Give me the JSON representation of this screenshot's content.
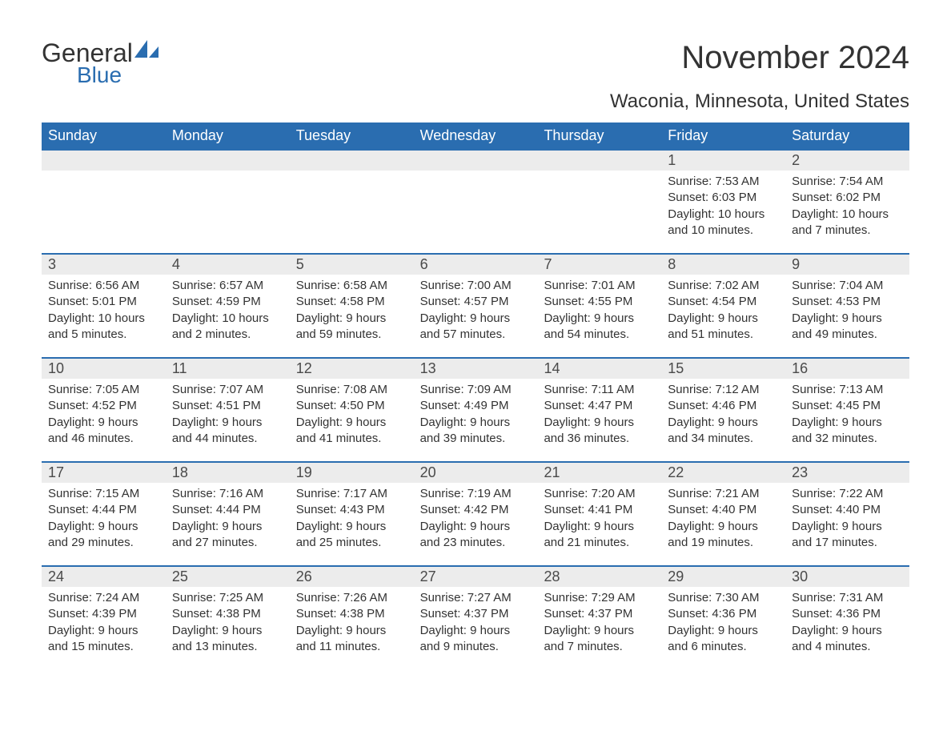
{
  "logo": {
    "text1": "General",
    "text2": "Blue"
  },
  "title": "November 2024",
  "location": "Waconia, Minnesota, United States",
  "colors": {
    "header_bg": "#2a6db0",
    "header_text": "#ffffff",
    "daynum_bg": "#ececec",
    "border": "#2a6db0",
    "body_text": "#333333",
    "logo_blue": "#2a6db0"
  },
  "dow": [
    "Sunday",
    "Monday",
    "Tuesday",
    "Wednesday",
    "Thursday",
    "Friday",
    "Saturday"
  ],
  "weeks": [
    [
      null,
      null,
      null,
      null,
      null,
      {
        "n": "1",
        "sunrise": "7:53 AM",
        "sunset": "6:03 PM",
        "daylight": "10 hours and 10 minutes."
      },
      {
        "n": "2",
        "sunrise": "7:54 AM",
        "sunset": "6:02 PM",
        "daylight": "10 hours and 7 minutes."
      }
    ],
    [
      {
        "n": "3",
        "sunrise": "6:56 AM",
        "sunset": "5:01 PM",
        "daylight": "10 hours and 5 minutes."
      },
      {
        "n": "4",
        "sunrise": "6:57 AM",
        "sunset": "4:59 PM",
        "daylight": "10 hours and 2 minutes."
      },
      {
        "n": "5",
        "sunrise": "6:58 AM",
        "sunset": "4:58 PM",
        "daylight": "9 hours and 59 minutes."
      },
      {
        "n": "6",
        "sunrise": "7:00 AM",
        "sunset": "4:57 PM",
        "daylight": "9 hours and 57 minutes."
      },
      {
        "n": "7",
        "sunrise": "7:01 AM",
        "sunset": "4:55 PM",
        "daylight": "9 hours and 54 minutes."
      },
      {
        "n": "8",
        "sunrise": "7:02 AM",
        "sunset": "4:54 PM",
        "daylight": "9 hours and 51 minutes."
      },
      {
        "n": "9",
        "sunrise": "7:04 AM",
        "sunset": "4:53 PM",
        "daylight": "9 hours and 49 minutes."
      }
    ],
    [
      {
        "n": "10",
        "sunrise": "7:05 AM",
        "sunset": "4:52 PM",
        "daylight": "9 hours and 46 minutes."
      },
      {
        "n": "11",
        "sunrise": "7:07 AM",
        "sunset": "4:51 PM",
        "daylight": "9 hours and 44 minutes."
      },
      {
        "n": "12",
        "sunrise": "7:08 AM",
        "sunset": "4:50 PM",
        "daylight": "9 hours and 41 minutes."
      },
      {
        "n": "13",
        "sunrise": "7:09 AM",
        "sunset": "4:49 PM",
        "daylight": "9 hours and 39 minutes."
      },
      {
        "n": "14",
        "sunrise": "7:11 AM",
        "sunset": "4:47 PM",
        "daylight": "9 hours and 36 minutes."
      },
      {
        "n": "15",
        "sunrise": "7:12 AM",
        "sunset": "4:46 PM",
        "daylight": "9 hours and 34 minutes."
      },
      {
        "n": "16",
        "sunrise": "7:13 AM",
        "sunset": "4:45 PM",
        "daylight": "9 hours and 32 minutes."
      }
    ],
    [
      {
        "n": "17",
        "sunrise": "7:15 AM",
        "sunset": "4:44 PM",
        "daylight": "9 hours and 29 minutes."
      },
      {
        "n": "18",
        "sunrise": "7:16 AM",
        "sunset": "4:44 PM",
        "daylight": "9 hours and 27 minutes."
      },
      {
        "n": "19",
        "sunrise": "7:17 AM",
        "sunset": "4:43 PM",
        "daylight": "9 hours and 25 minutes."
      },
      {
        "n": "20",
        "sunrise": "7:19 AM",
        "sunset": "4:42 PM",
        "daylight": "9 hours and 23 minutes."
      },
      {
        "n": "21",
        "sunrise": "7:20 AM",
        "sunset": "4:41 PM",
        "daylight": "9 hours and 21 minutes."
      },
      {
        "n": "22",
        "sunrise": "7:21 AM",
        "sunset": "4:40 PM",
        "daylight": "9 hours and 19 minutes."
      },
      {
        "n": "23",
        "sunrise": "7:22 AM",
        "sunset": "4:40 PM",
        "daylight": "9 hours and 17 minutes."
      }
    ],
    [
      {
        "n": "24",
        "sunrise": "7:24 AM",
        "sunset": "4:39 PM",
        "daylight": "9 hours and 15 minutes."
      },
      {
        "n": "25",
        "sunrise": "7:25 AM",
        "sunset": "4:38 PM",
        "daylight": "9 hours and 13 minutes."
      },
      {
        "n": "26",
        "sunrise": "7:26 AM",
        "sunset": "4:38 PM",
        "daylight": "9 hours and 11 minutes."
      },
      {
        "n": "27",
        "sunrise": "7:27 AM",
        "sunset": "4:37 PM",
        "daylight": "9 hours and 9 minutes."
      },
      {
        "n": "28",
        "sunrise": "7:29 AM",
        "sunset": "4:37 PM",
        "daylight": "9 hours and 7 minutes."
      },
      {
        "n": "29",
        "sunrise": "7:30 AM",
        "sunset": "4:36 PM",
        "daylight": "9 hours and 6 minutes."
      },
      {
        "n": "30",
        "sunrise": "7:31 AM",
        "sunset": "4:36 PM",
        "daylight": "9 hours and 4 minutes."
      }
    ]
  ],
  "labels": {
    "sunrise": "Sunrise:",
    "sunset": "Sunset:",
    "daylight": "Daylight:"
  }
}
